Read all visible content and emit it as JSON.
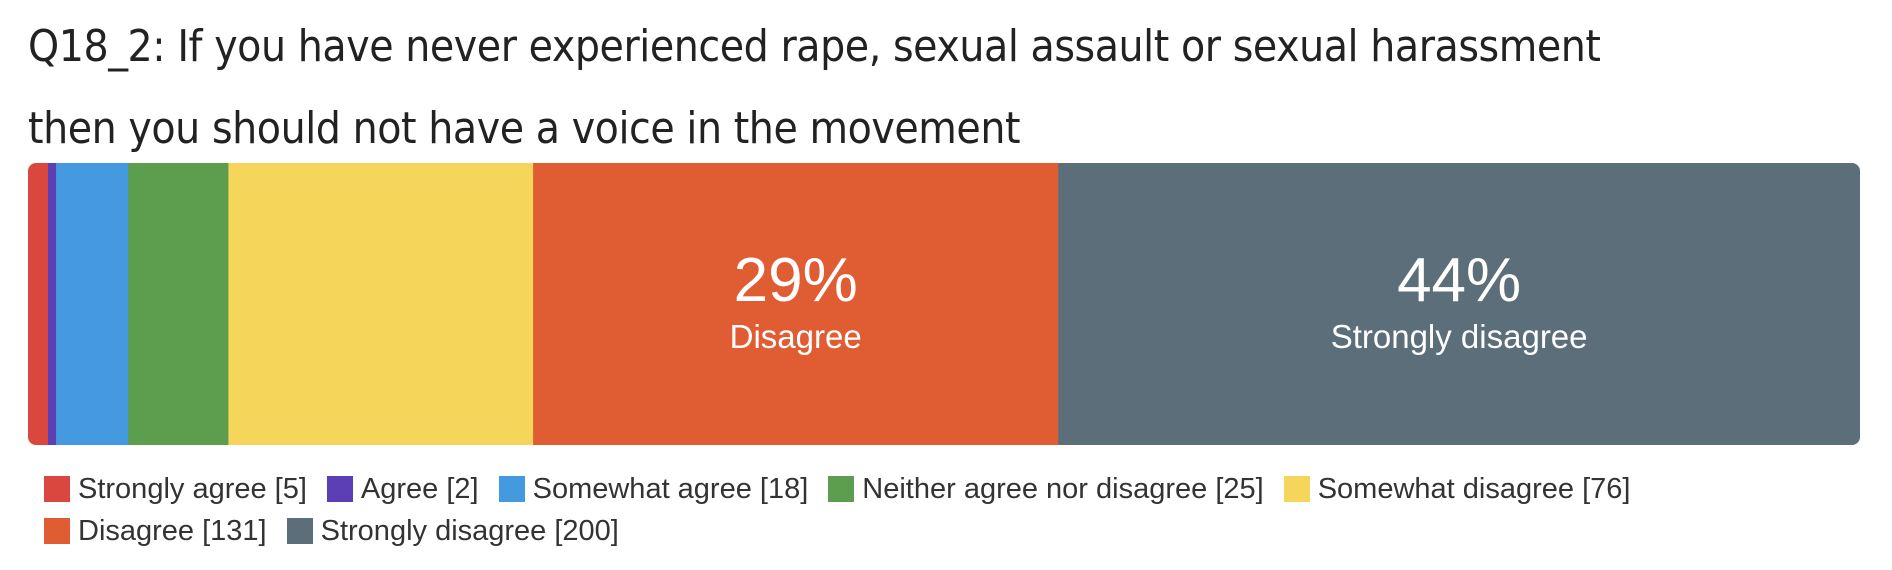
{
  "title": "Q18_2: If you have never experienced rape, sexual assault or sexual harassment then you should not have a voice in the movement",
  "chart_data": {
    "type": "bar",
    "orientation": "horizontal-stacked",
    "categories": [
      "Strongly agree",
      "Agree",
      "Somewhat agree",
      "Neither agree nor disagree",
      "Somewhat disagree",
      "Disagree",
      "Strongly disagree"
    ],
    "values": [
      5,
      2,
      18,
      25,
      76,
      131,
      200
    ],
    "colors": [
      "#d9473f",
      "#5b3fb5",
      "#4599de",
      "#5c9e4e",
      "#f5d55a",
      "#e05d33",
      "#5b6e7a"
    ],
    "data_labels": [
      {
        "category_index": 5,
        "percent": "29%",
        "label": "Disagree"
      },
      {
        "category_index": 6,
        "percent": "44%",
        "label": "Strongly disagree"
      }
    ],
    "legend_position": "bottom",
    "legend": [
      {
        "text": "Strongly agree [5]",
        "color": "#d9473f"
      },
      {
        "text": "Agree [2]",
        "color": "#5b3fb5"
      },
      {
        "text": "Somewhat agree [18]",
        "color": "#4599de"
      },
      {
        "text": "Neither agree nor disagree [25]",
        "color": "#5c9e4e"
      },
      {
        "text": "Somewhat disagree [76]",
        "color": "#f5d55a"
      },
      {
        "text": "Disagree [131]",
        "color": "#e05d33"
      },
      {
        "text": "Strongly disagree [200]",
        "color": "#5b6e7a"
      }
    ]
  }
}
